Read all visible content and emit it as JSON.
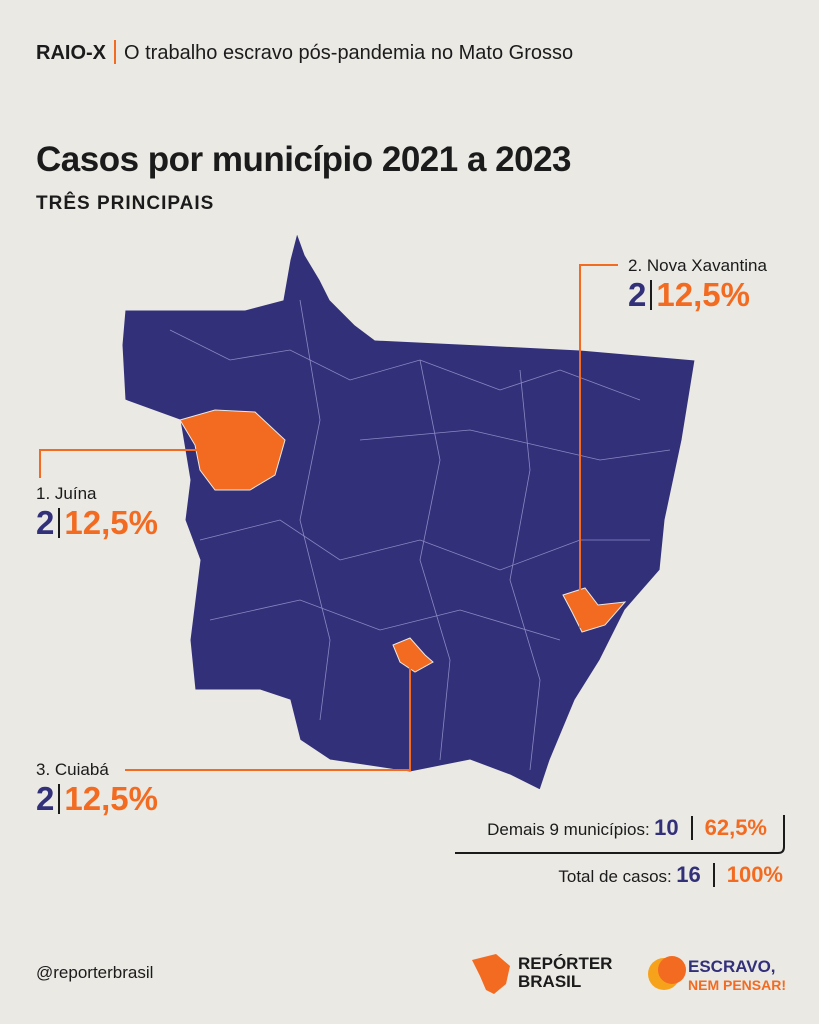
{
  "header": {
    "tag": "RAIO-X",
    "subtitle": "O trabalho escravo pós-pandemia no Mato Grosso"
  },
  "title": "Casos por município 2021 a 2023",
  "subtitle": "TRÊS PRINCIPAIS",
  "callouts": [
    {
      "label": "1. Juína",
      "cases": "2",
      "share": "12,5%"
    },
    {
      "label": "2. Nova Xavantina",
      "cases": "2",
      "share": "12,5%"
    },
    {
      "label": "3. Cuiabá",
      "cases": "2",
      "share": "12,5%"
    }
  ],
  "summary": [
    {
      "label": "Demais 9 municípios:",
      "cases": "10",
      "share": "62,5%"
    },
    {
      "label": "Total de casos:",
      "cases": "16",
      "share": "100%"
    }
  ],
  "footer": {
    "handle": "@reporterbrasil",
    "logo_reporter": [
      "REPÓRTER",
      "BRASIL"
    ],
    "logo_escravo": [
      "ESCRAVO,",
      "NEM PENSAR!"
    ]
  }
}
